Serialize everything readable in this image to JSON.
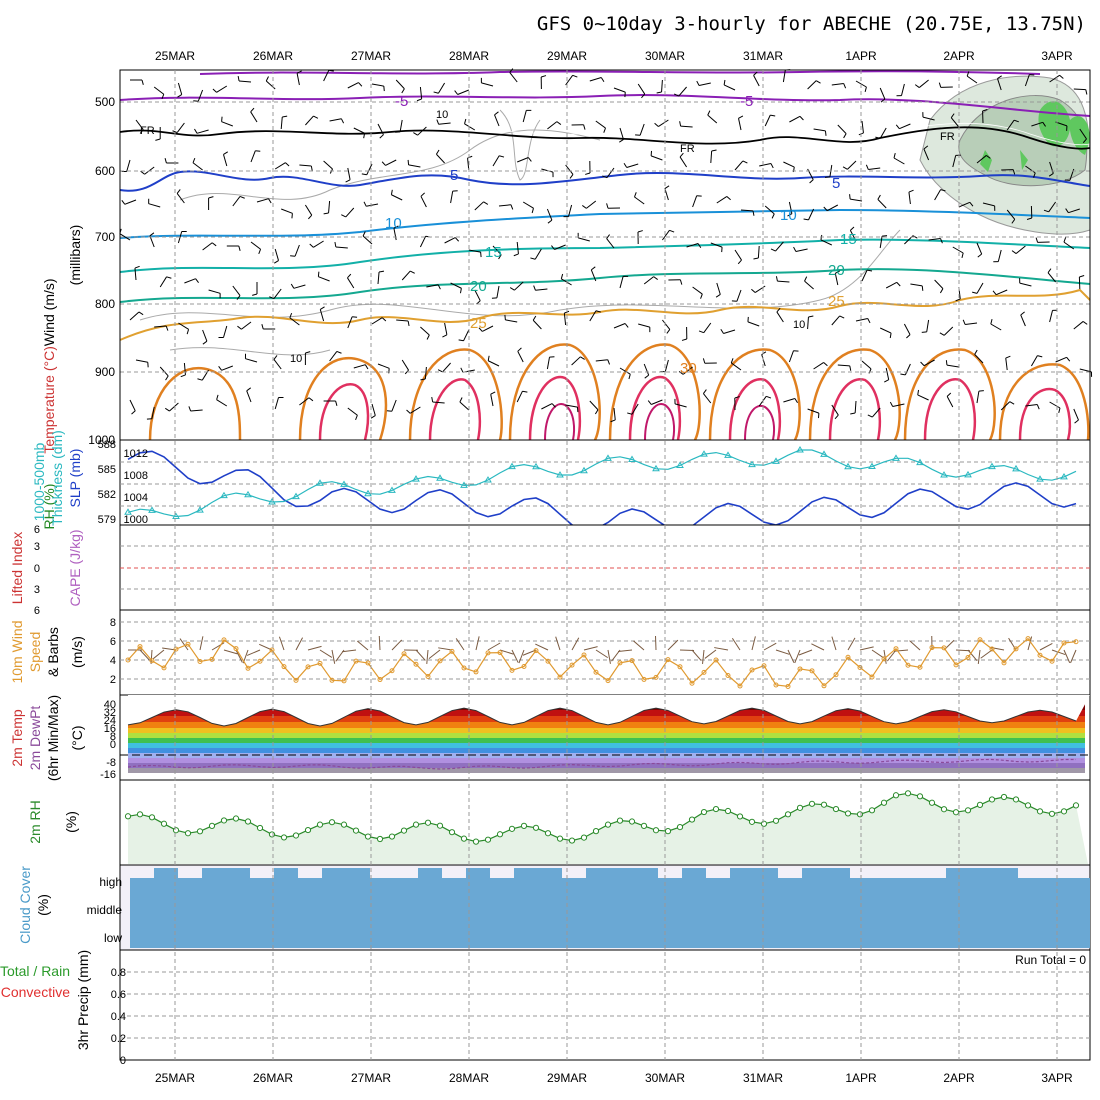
{
  "title": "GFS 0~10day 3-hourly for ABECHE (20.75E, 13.75N)",
  "dates": [
    "25MAR",
    "26MAR",
    "27MAR",
    "28MAR",
    "29MAR",
    "30MAR",
    "31MAR",
    "1APR",
    "2APR",
    "3APR"
  ],
  "panels": {
    "upper": {
      "ylabel_parts": [
        {
          "text": "Wind (m/s)",
          "color": "#000000"
        },
        {
          "text": "Temperature (°C)",
          "color": "#cc3333"
        },
        {
          "text": "RH (%)",
          "color": "#228822"
        }
      ],
      "unit_label": "(millibars)",
      "ticks": [
        "500",
        "600",
        "700",
        "800",
        "900",
        "1000"
      ],
      "contour_labels": [
        {
          "text": "-5",
          "color": "#8a1fb5"
        },
        {
          "text": "-5",
          "color": "#8a1fb5"
        },
        {
          "text": "FR",
          "color": "#000000"
        },
        {
          "text": "FR",
          "color": "#000000"
        },
        {
          "text": "FR",
          "color": "#000000"
        },
        {
          "text": "5",
          "color": "#1f3fc8"
        },
        {
          "text": "5",
          "color": "#1f3fc8"
        },
        {
          "text": "10",
          "color": "#1990d8"
        },
        {
          "text": "10",
          "color": "#1990d8"
        },
        {
          "text": "10",
          "color": "#999999"
        },
        {
          "text": "10",
          "color": "#999999"
        },
        {
          "text": "10",
          "color": "#999999"
        },
        {
          "text": "15",
          "color": "#12b0a8"
        },
        {
          "text": "15",
          "color": "#12b0a8"
        },
        {
          "text": "20",
          "color": "#14a890"
        },
        {
          "text": "20",
          "color": "#14a890"
        },
        {
          "text": "25",
          "color": "#e0a030"
        },
        {
          "text": "25",
          "color": "#e0a030"
        },
        {
          "text": "30",
          "color": "#e08020"
        }
      ],
      "levels_mb": [
        500,
        600,
        700,
        800,
        900,
        1000
      ]
    },
    "thickness": {
      "ylabel_a": "1000-500mb",
      "ylabel_b": "Thickness (dm)",
      "ylabel_c": "SLP (mb)",
      "left_ticks": [
        "588",
        "585",
        "582",
        "579"
      ],
      "right_ticks": [
        "1012",
        "1008",
        "1004",
        "1000"
      ]
    },
    "cape": {
      "ylabel_a": "Lifted Index",
      "ylabel_b": "CAPE (J/kg)",
      "ticks": [
        "6",
        "3",
        "0",
        "3",
        "6"
      ]
    },
    "wind10m": {
      "ylabel_a": "10m Wind",
      "ylabel_b": "Speed",
      "ylabel_c": "& Barbs",
      "unit": "(m/s)",
      "ticks": [
        "8",
        "6",
        "4",
        "2"
      ]
    },
    "temp2m": {
      "ylabel_a": "2m Temp",
      "ylabel_b": "2m DewPt",
      "ylabel_c": "(6hr Min/Max)",
      "unit": "(°C)",
      "ticks": [
        "40",
        "32",
        "24",
        "16",
        "8",
        "0",
        "-8",
        "-16"
      ]
    },
    "rh2m": {
      "ylabel": "2m RH",
      "unit": "(%)"
    },
    "cloud": {
      "ylabel": "Cloud Cover",
      "unit": "(%)",
      "levels": [
        "high",
        "middle",
        "low"
      ]
    },
    "precip": {
      "ylabel_a": "Total / Rain",
      "ylabel_b": "Convective",
      "ylabel_c": "3hr Precip (mm)",
      "ticks": [
        "0.8",
        "0.6",
        "0.4",
        "0.2",
        "0"
      ],
      "run_total": "Run Total = 0"
    }
  },
  "colors": {
    "slp": "#1f3fc8",
    "thickness": "#2ab8c0",
    "wind": "#e09a30",
    "rh": "#2a8a2a",
    "cloud": "#6aa8d4",
    "dewpt": "#8a4a9a",
    "ref_line": "#e05050"
  },
  "chart_data": [
    {
      "type": "line",
      "name": "thickness-slp",
      "x": [
        "25MAR",
        "26MAR",
        "27MAR",
        "28MAR",
        "29MAR",
        "30MAR",
        "31MAR",
        "1APR",
        "2APR",
        "3APR"
      ],
      "series": [
        {
          "name": "SLP (mb)",
          "values": [
            1012.5,
            1009.5,
            1005,
            1005,
            1004,
            1001,
            1002,
            1003,
            1004.5,
            1006
          ]
        },
        {
          "name": "1000-500mb Thickness (dm)",
          "values": [
            579.5,
            581.5,
            583,
            583.5,
            585,
            586,
            586.5,
            587,
            586,
            585
          ]
        }
      ],
      "ylim_left": [
        578,
        588
      ],
      "ylim_right": [
        998,
        1014
      ]
    },
    {
      "type": "line",
      "name": "10m wind speed",
      "x": [
        "25MAR",
        "26MAR",
        "27MAR",
        "28MAR",
        "29MAR",
        "30MAR",
        "31MAR",
        "1APR",
        "2APR",
        "3APR"
      ],
      "series": [
        {
          "name": "Speed (m/s)",
          "values": [
            4,
            5,
            2.5,
            3.5,
            4,
            3,
            2.8,
            2,
            4,
            5
          ]
        }
      ],
      "ylim": [
        0,
        9
      ]
    },
    {
      "type": "area",
      "name": "2m temperature",
      "x": [
        "25MAR",
        "26MAR",
        "27MAR",
        "28MAR",
        "29MAR",
        "30MAR",
        "31MAR",
        "1APR",
        "2APR",
        "3APR"
      ],
      "series": [
        {
          "name": "2m Temp max (°C)",
          "values": [
            36,
            37,
            37,
            38,
            38,
            38,
            38,
            38,
            37,
            36
          ]
        },
        {
          "name": "2m Temp min (°C)",
          "values": [
            22,
            21,
            21,
            22,
            22,
            22,
            23,
            23,
            23,
            24
          ]
        },
        {
          "name": "2m DewPt (°C)",
          "values": [
            -10,
            -9,
            -9,
            -11,
            -10,
            -8,
            -7,
            -5,
            -4,
            -3
          ]
        }
      ],
      "ylim": [
        -20,
        44
      ]
    },
    {
      "type": "line",
      "name": "2m RH",
      "x": [
        "25MAR",
        "26MAR",
        "27MAR",
        "28MAR",
        "29MAR",
        "30MAR",
        "31MAR",
        "1APR",
        "2APR",
        "3APR"
      ],
      "series": [
        {
          "name": "2m RH (%)",
          "values": [
            9,
            8,
            7,
            7,
            6,
            7,
            10,
            11,
            14,
            13
          ]
        }
      ],
      "ylim": [
        0,
        20
      ]
    },
    {
      "type": "bar",
      "name": "3hr precip",
      "x": [
        "25MAR",
        "26MAR",
        "27MAR",
        "28MAR",
        "29MAR",
        "30MAR",
        "31MAR",
        "1APR",
        "2APR",
        "3APR"
      ],
      "series": [
        {
          "name": "Total",
          "values": [
            0,
            0,
            0,
            0,
            0,
            0,
            0,
            0,
            0,
            0
          ]
        }
      ],
      "ylim": [
        0,
        1
      ]
    }
  ]
}
